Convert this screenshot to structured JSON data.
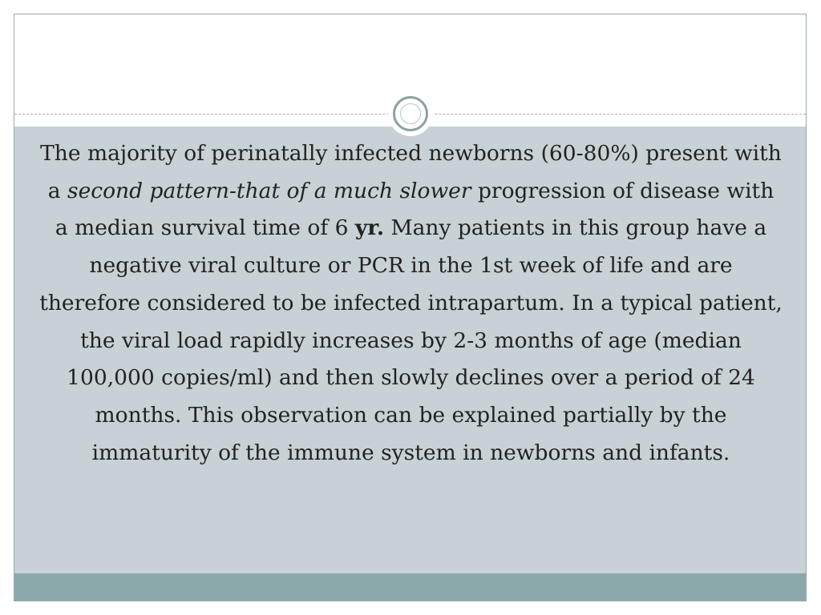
{
  "slide": {
    "title": "",
    "decorative_icon": "ring-ornament-icon",
    "paragraph": {
      "intro": "The majority of perinatally infected newborns (60-80%) present with a ",
      "emphasis": "second pattern-that of a much slower",
      "middle": " progression of disease with a median survival time of 6 ",
      "bold": "yr.",
      "rest": " Many patients in this group have a negative viral culture or PCR in the 1st week of life and are therefore considered to be infected intrapartum. In a typical patient, the viral load rapidly increases by 2-3 months of age (median 100,000 copies/ml) and then slowly declines over a period of 24 months. This observation can be explained partially by the immaturity of the immune system in newborns and infants."
    }
  },
  "colors": {
    "content_background": "#c8d1d5",
    "footer_band": "#8ca9aa",
    "border": "#9aa9aa",
    "text": "#222222",
    "ornament_ring": "#8ea1a3"
  }
}
